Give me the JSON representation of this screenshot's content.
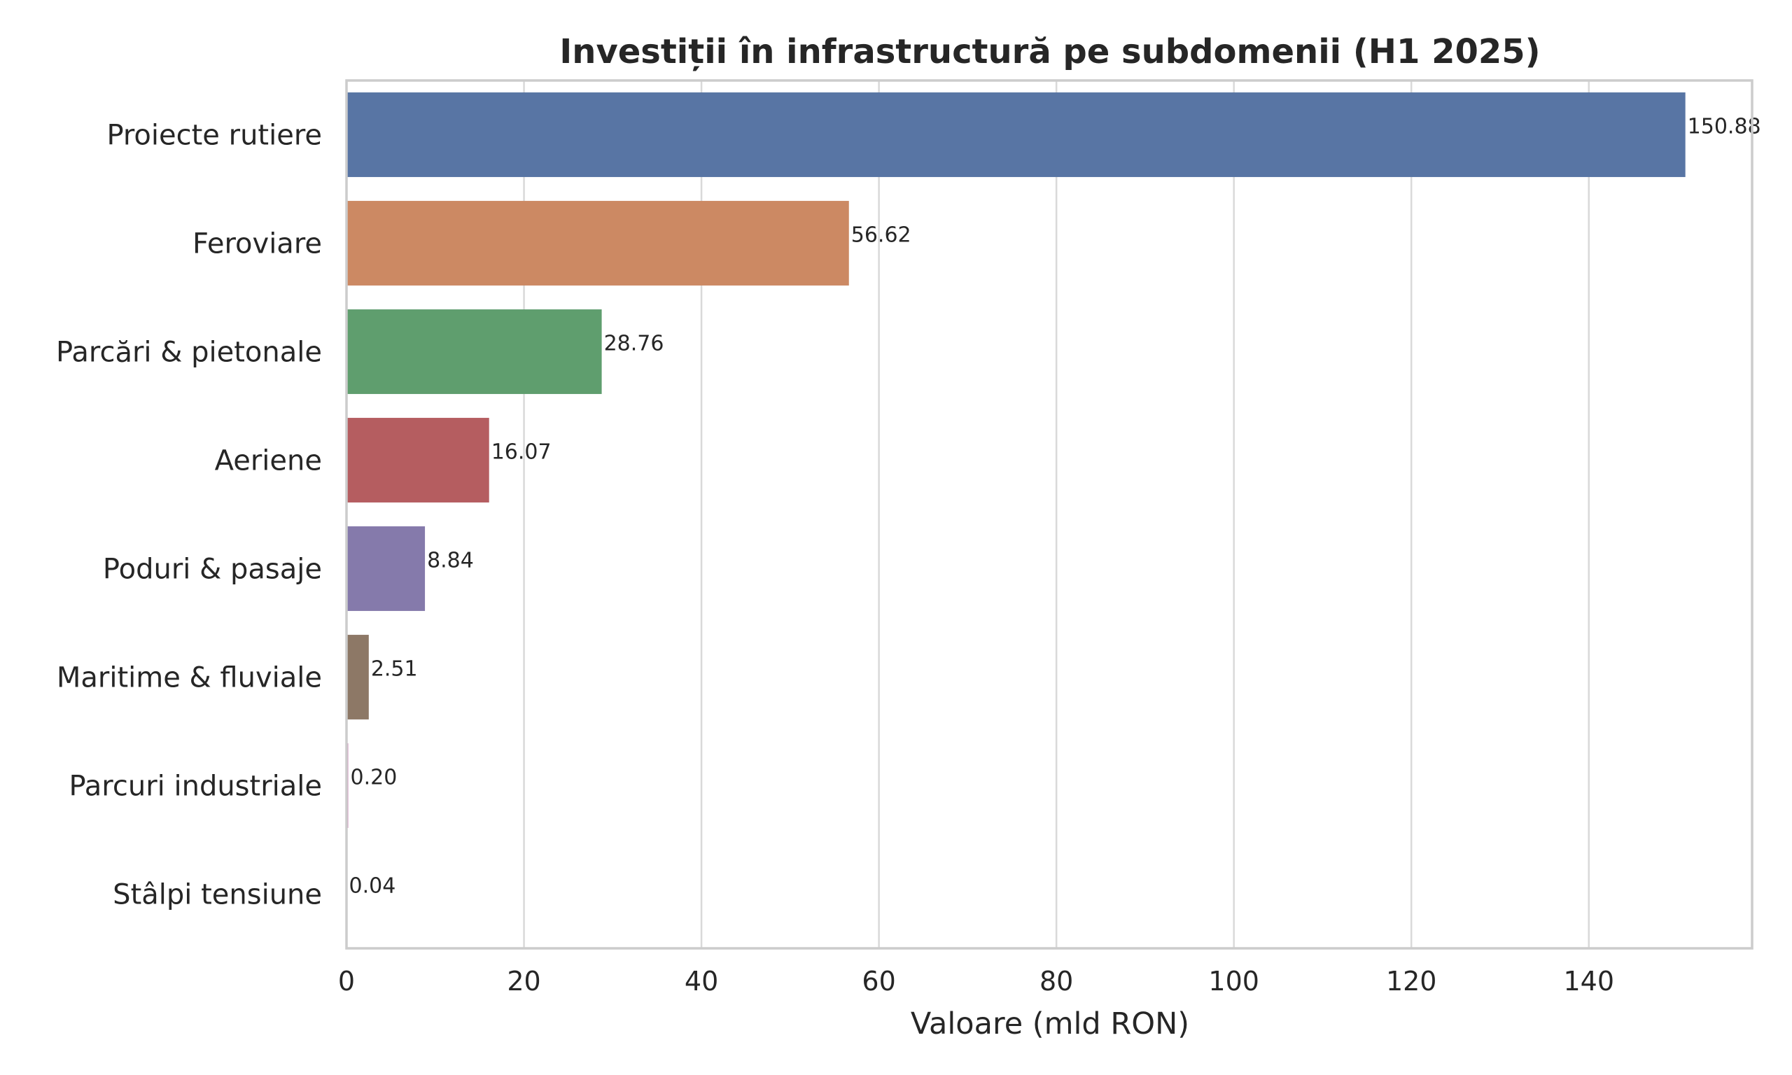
{
  "chart_data": {
    "type": "bar",
    "orientation": "horizontal",
    "title": "Investiții în infrastructură pe subdomenii (H1 2025)",
    "xlabel": "Valoare (mld RON)",
    "ylabel": "",
    "categories": [
      "Proiecte rutiere",
      "Feroviare",
      "Parcări & pietonale",
      "Aeriene",
      "Poduri & pasaje",
      "Maritime & fluviale",
      "Parcuri industriale",
      "Stâlpi tensiune"
    ],
    "values": [
      150.88,
      56.62,
      28.76,
      16.07,
      8.84,
      2.51,
      0.2,
      0.04
    ],
    "value_labels": [
      "150.88",
      "56.62",
      "28.76",
      "16.07",
      "8.84",
      "2.51",
      "0.20",
      "0.04"
    ],
    "colors": [
      "#5875a4",
      "#cc8963",
      "#5f9e6e",
      "#b55d60",
      "#857aab",
      "#8d7866",
      "#d095bf",
      "#8c8c8c"
    ],
    "xlim": [
      0,
      158.4
    ],
    "xticks": [
      0,
      20,
      40,
      60,
      80,
      100,
      120,
      140
    ],
    "xtick_labels": [
      "0",
      "20",
      "40",
      "60",
      "80",
      "100",
      "120",
      "140"
    ],
    "grid": "vertical",
    "legend": "none"
  }
}
